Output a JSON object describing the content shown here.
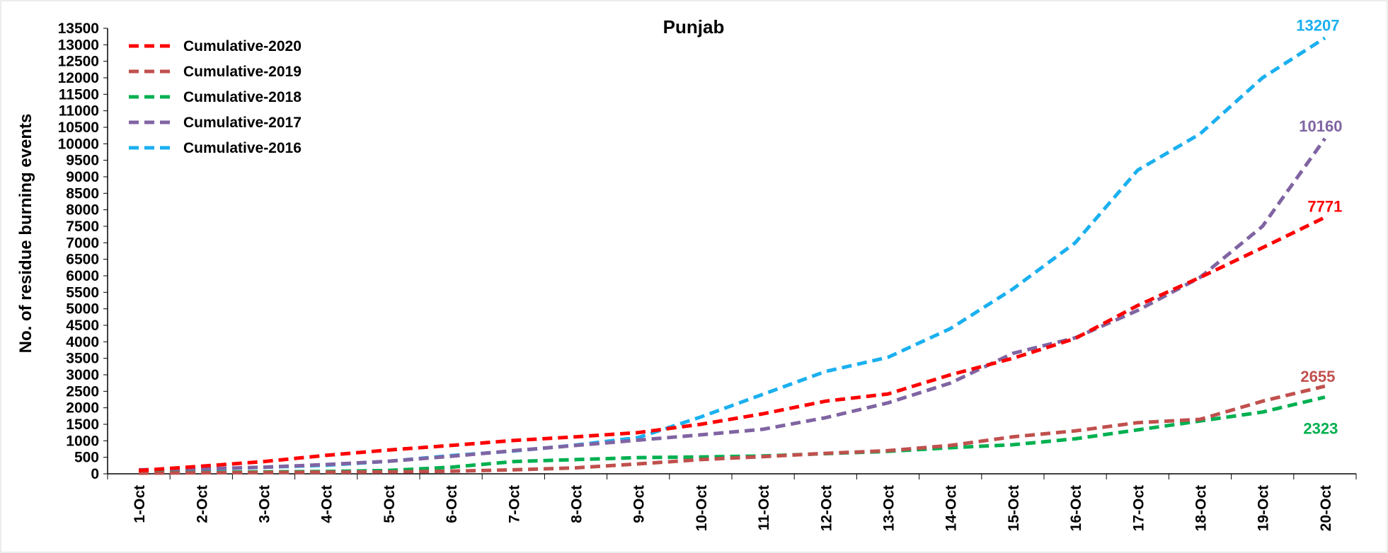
{
  "chart_data": {
    "type": "line",
    "title": "Punjab",
    "xlabel": "",
    "ylabel": "No. of residue burning events",
    "ylim": [
      0,
      13500
    ],
    "ytick_step": 500,
    "grid": false,
    "legend_position": "top-left",
    "categories": [
      "1-Oct",
      "2-Oct",
      "3-Oct",
      "4-Oct",
      "5-Oct",
      "6-Oct",
      "7-Oct",
      "8-Oct",
      "9-Oct",
      "10-Oct",
      "11-Oct",
      "12-Oct",
      "13-Oct",
      "14-Oct",
      "15-Oct",
      "16-Oct",
      "17-Oct",
      "18-Oct",
      "19-Oct",
      "20-Oct"
    ],
    "series": [
      {
        "name": "Cumulative-2020",
        "color": "#ff0000",
        "end_label": "7771",
        "values": [
          100,
          230,
          370,
          560,
          720,
          860,
          1010,
          1120,
          1250,
          1500,
          1820,
          2200,
          2420,
          3000,
          3500,
          4100,
          5100,
          5950,
          6850,
          7771
        ]
      },
      {
        "name": "Cumulative-2019",
        "color": "#c0504d",
        "end_label": "2655",
        "values": [
          20,
          30,
          40,
          50,
          60,
          80,
          120,
          180,
          300,
          430,
          520,
          620,
          700,
          860,
          1120,
          1300,
          1550,
          1650,
          2200,
          2655
        ]
      },
      {
        "name": "Cumulative-2018",
        "color": "#00b050",
        "end_label": "2323",
        "values": [
          30,
          40,
          60,
          70,
          100,
          200,
          370,
          430,
          490,
          510,
          540,
          610,
          680,
          790,
          880,
          1060,
          1330,
          1600,
          1870,
          2323
        ]
      },
      {
        "name": "Cumulative-2017",
        "color": "#8064a2",
        "end_label": "10160",
        "values": [
          120,
          150,
          200,
          280,
          380,
          530,
          700,
          860,
          1020,
          1180,
          1350,
          1700,
          2150,
          2750,
          3650,
          4120,
          4950,
          5950,
          7500,
          10160
        ]
      },
      {
        "name": "Cumulative-2016",
        "color": "#1ab0f0",
        "end_label": "13207",
        "values": [
          80,
          130,
          200,
          260,
          380,
          550,
          690,
          870,
          1100,
          1720,
          2410,
          3100,
          3530,
          4400,
          5600,
          7000,
          9200,
          10300,
          12000,
          13207
        ]
      }
    ]
  }
}
